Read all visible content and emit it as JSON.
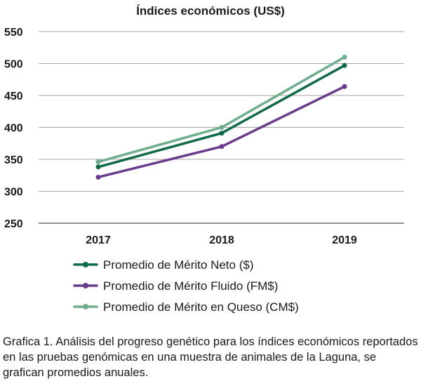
{
  "chart_data": {
    "type": "line",
    "title": "Índices económicos (US$)",
    "xlabel": "",
    "ylabel": "",
    "categories": [
      "2017",
      "2018",
      "2019"
    ],
    "ylim": [
      250,
      550
    ],
    "yticks": [
      250,
      300,
      350,
      400,
      450,
      500,
      550
    ],
    "grid": "horizontal",
    "legend_position": "bottom",
    "series": [
      {
        "name": "Promedio de Mérito Neto ($)",
        "color": "#0e6b45",
        "values": [
          338,
          391,
          497
        ]
      },
      {
        "name": "Promedio de Mérito Fluido (FM$)",
        "color": "#6b3b8e",
        "values": [
          322,
          370,
          464
        ]
      },
      {
        "name": "Promedio de Mérito en Queso (CM$)",
        "color": "#6fae8c",
        "values": [
          346,
          400,
          510
        ]
      }
    ]
  },
  "caption": "Grafica 1. Análisis del progreso genético para los índices económicos reportados en las pruebas genómicas en una muestra de animales de la Laguna, se grafican promedios anuales."
}
